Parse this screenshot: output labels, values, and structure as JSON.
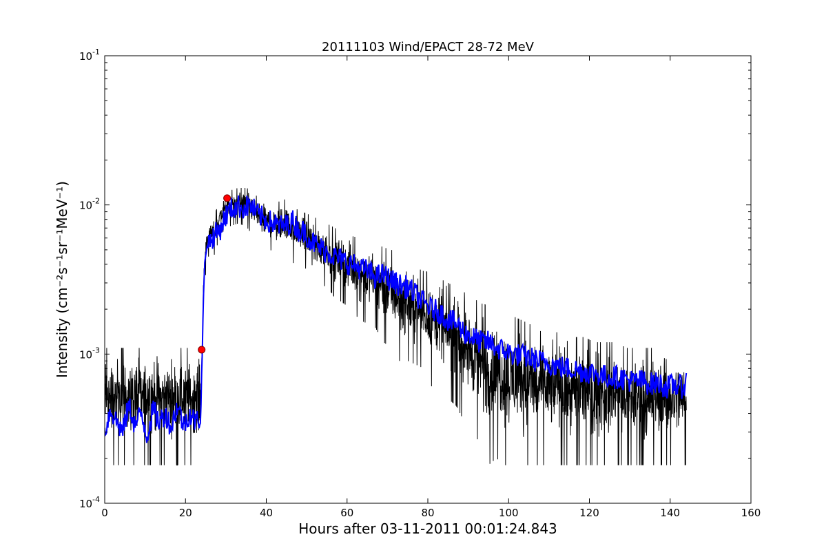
{
  "chart_data": {
    "type": "line",
    "title": "20111103 Wind/EPACT 28-72 MeV",
    "xlabel": "Hours after 03-11-2011 00:01:24.843",
    "ylabel": "Intensity (cm⁻²s⁻¹sr⁻¹MeV⁻¹)",
    "xlim": [
      0,
      160
    ],
    "ylim": [
      0.0001,
      0.1
    ],
    "yscale": "log",
    "grid": false,
    "x_ticks": [
      0,
      20,
      40,
      60,
      80,
      100,
      120,
      140,
      160
    ],
    "y_ticks": [
      {
        "value": 0.0001,
        "base": "10",
        "exp": "-4"
      },
      {
        "value": 0.001,
        "base": "10",
        "exp": "-3"
      },
      {
        "value": 0.01,
        "base": "10",
        "exp": "-2"
      },
      {
        "value": 0.1,
        "base": "10",
        "exp": "-1"
      }
    ],
    "series": [
      {
        "color": "#000000",
        "style": "raw noisy data",
        "floor": 0.00018,
        "x": [
          0,
          2,
          4,
          6,
          8,
          10,
          12,
          14,
          16,
          18,
          20,
          22,
          23.8,
          24.2,
          24.8,
          25.5,
          27,
          29,
          31,
          33,
          35,
          37,
          39,
          41,
          43,
          45,
          47,
          49,
          51,
          53,
          55,
          57,
          59,
          61,
          63,
          65,
          67,
          69,
          71,
          73,
          75,
          77,
          79,
          81,
          83,
          85,
          87,
          89,
          91,
          93,
          95,
          97,
          99,
          101,
          103,
          105,
          107,
          109,
          111,
          113,
          115,
          117,
          119,
          121,
          123,
          125,
          127,
          129,
          131,
          133,
          135,
          137,
          139,
          141,
          143,
          144
        ],
        "y_low": [
          0.00018,
          0.00018,
          0.00018,
          0.00018,
          0.00018,
          0.00018,
          0.00018,
          0.00018,
          0.00018,
          0.00018,
          0.00018,
          0.00018,
          0.00018,
          0.0011,
          0.003,
          0.0045,
          0.0045,
          0.0065,
          0.0072,
          0.0075,
          0.0072,
          0.006,
          0.0048,
          0.005,
          0.0045,
          0.0045,
          0.004,
          0.004,
          0.0033,
          0.003,
          0.0028,
          0.0024,
          0.0022,
          0.002,
          0.0017,
          0.0016,
          0.0015,
          0.0012,
          0.0011,
          0.0009,
          0.0009,
          0.00085,
          0.0008,
          0.0006,
          0.0006,
          0.0005,
          0.00045,
          0.00035,
          0.0003,
          0.00025,
          0.00018,
          0.0002,
          0.00018,
          0.00018,
          0.00018,
          0.00018,
          0.00018,
          0.00018,
          0.00018,
          0.00018,
          0.00018,
          0.00018,
          0.00018,
          0.00018,
          0.00018,
          0.00018,
          0.00018,
          0.00018,
          0.00018,
          0.00018,
          0.00018,
          0.00018,
          0.00018,
          0.00018,
          0.00018,
          0.00018
        ],
        "y_high": [
          0.0011,
          0.0011,
          0.0011,
          0.0011,
          0.0011,
          0.0011,
          0.0011,
          0.0011,
          0.0011,
          0.0011,
          0.0011,
          0.0011,
          0.0011,
          0.0012,
          0.006,
          0.0075,
          0.0085,
          0.011,
          0.0125,
          0.013,
          0.013,
          0.0125,
          0.011,
          0.0105,
          0.0105,
          0.011,
          0.0095,
          0.009,
          0.0085,
          0.008,
          0.0075,
          0.007,
          0.0065,
          0.0062,
          0.006,
          0.0055,
          0.0055,
          0.0052,
          0.005,
          0.0045,
          0.004,
          0.0038,
          0.0036,
          0.0035,
          0.0032,
          0.003,
          0.0028,
          0.0026,
          0.0024,
          0.0022,
          0.0021,
          0.002,
          0.0019,
          0.0018,
          0.0017,
          0.0016,
          0.0015,
          0.0015,
          0.0014,
          0.0014,
          0.0013,
          0.0013,
          0.0013,
          0.0012,
          0.0012,
          0.0012,
          0.0012,
          0.0011,
          0.0011,
          0.0011,
          0.0011,
          0.0011,
          0.0011,
          0.0011,
          0.0011,
          0.0011
        ]
      },
      {
        "color": "#0000ff",
        "style": "smoothed average",
        "x": [
          0,
          1.5,
          3,
          4.5,
          6,
          7.5,
          9,
          10.5,
          12,
          13.5,
          15,
          16.5,
          18,
          19.5,
          21,
          22.5,
          23.8,
          24.2,
          24.8,
          25.5,
          27,
          28.5,
          30,
          31.5,
          33,
          34.5,
          36,
          37.5,
          39,
          40.5,
          42,
          43.5,
          45,
          46.5,
          48,
          49.5,
          51,
          53,
          55,
          57,
          59,
          61,
          63,
          65,
          67,
          69,
          71,
          73,
          75,
          77,
          79,
          81,
          83,
          85,
          87,
          89,
          91,
          93,
          95,
          97,
          99,
          101,
          103,
          105,
          107,
          109,
          111,
          113,
          115,
          117,
          119,
          121,
          123,
          125,
          127,
          129,
          131,
          133,
          135,
          137,
          139,
          141,
          143,
          144
        ],
        "y": [
          0.0003,
          0.00042,
          0.00035,
          0.0003,
          0.00045,
          0.00033,
          0.0004,
          0.00028,
          0.00042,
          0.00035,
          0.0004,
          0.00032,
          0.00045,
          0.00033,
          0.0004,
          0.00035,
          0.00038,
          0.0011,
          0.0042,
          0.0055,
          0.0062,
          0.0068,
          0.0085,
          0.0095,
          0.0098,
          0.0095,
          0.01,
          0.0088,
          0.0082,
          0.0078,
          0.0075,
          0.0072,
          0.0073,
          0.0078,
          0.0068,
          0.0066,
          0.0058,
          0.0052,
          0.0049,
          0.0045,
          0.0042,
          0.004,
          0.0038,
          0.0036,
          0.0033,
          0.0034,
          0.0031,
          0.0029,
          0.0028,
          0.0025,
          0.0022,
          0.002,
          0.0019,
          0.0017,
          0.0016,
          0.0014,
          0.0013,
          0.0012,
          0.0012,
          0.0011,
          0.00105,
          0.001,
          0.00098,
          0.00095,
          0.0009,
          0.00088,
          0.00085,
          0.00082,
          0.0008,
          0.00078,
          0.00076,
          0.00075,
          0.00072,
          0.0007,
          0.0007,
          0.00068,
          0.00065,
          0.00066,
          0.00063,
          0.00064,
          0.0006,
          0.00062,
          0.0006,
          0.00065
        ]
      }
    ],
    "markers": [
      {
        "x": 24,
        "y": 0.00107,
        "color": "#ff0000"
      },
      {
        "x": 30.3,
        "y": 0.0111,
        "color": "#ff0000"
      }
    ]
  }
}
